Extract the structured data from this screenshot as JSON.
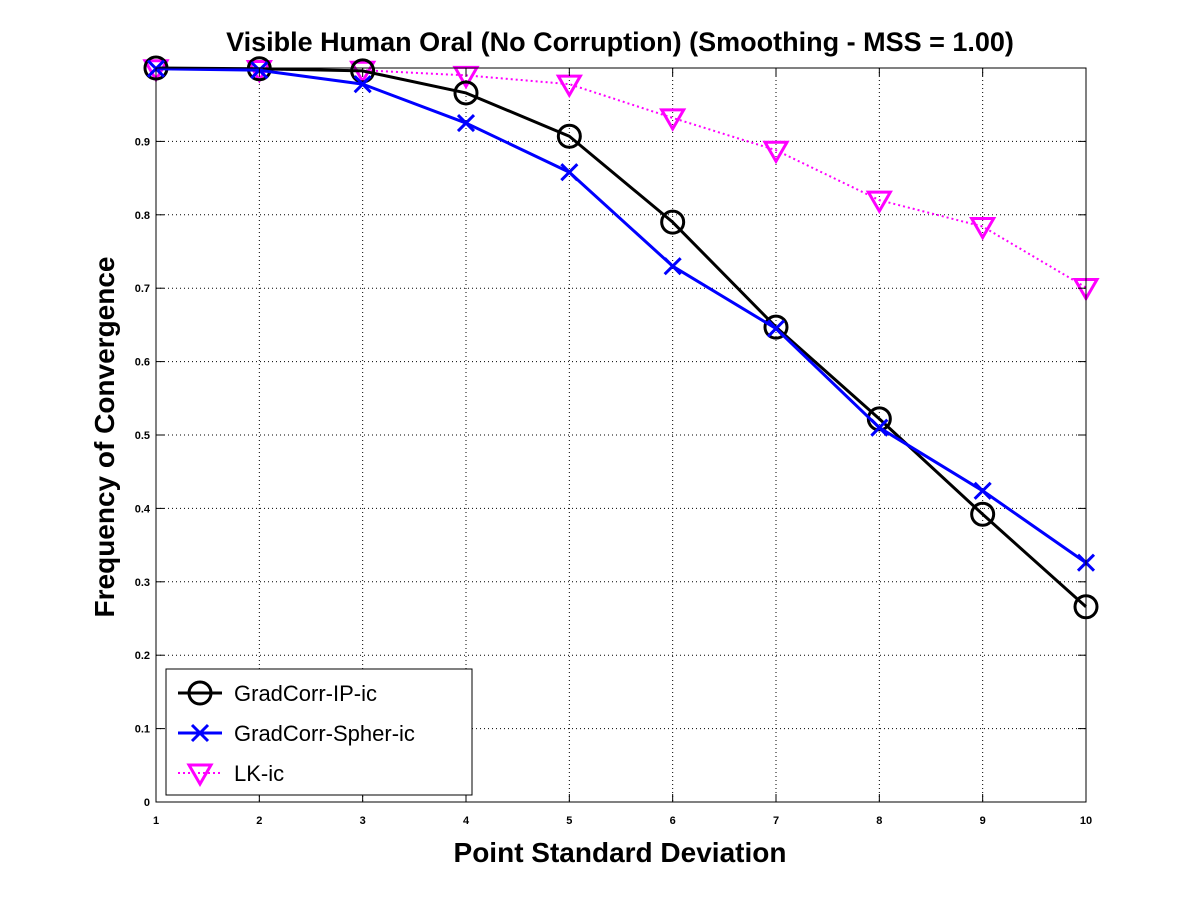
{
  "chart_data": {
    "type": "line",
    "title": "Visible Human Oral (No Corruption) (Smoothing - MSS = 1.00)",
    "xlabel": "Point Standard Deviation",
    "ylabel": "Frequency of Convergence",
    "xlim": [
      1,
      10
    ],
    "ylim": [
      0,
      1
    ],
    "grid": true,
    "legend_position": "bottom-left",
    "x": [
      1,
      2,
      3,
      4,
      5,
      6,
      7,
      8,
      9,
      10
    ],
    "x_ticks": [
      "1",
      "2",
      "3",
      "4",
      "5",
      "6",
      "7",
      "8",
      "9",
      "10"
    ],
    "y_ticks": [
      {
        "value": 0,
        "label": "0"
      },
      {
        "value": 0.1,
        "label": "0.1"
      },
      {
        "value": 0.2,
        "label": "0.2"
      },
      {
        "value": 0.3,
        "label": "0.3"
      },
      {
        "value": 0.4,
        "label": "0.4"
      },
      {
        "value": 0.5,
        "label": "0.5"
      },
      {
        "value": 0.6,
        "label": "0.6"
      },
      {
        "value": 0.7,
        "label": "0.7"
      },
      {
        "value": 0.8,
        "label": "0.8"
      },
      {
        "value": 0.9,
        "label": "0.9"
      }
    ],
    "series": [
      {
        "name": "GradCorr-IP-ic",
        "color": "#000000",
        "marker": "circle",
        "line_style": "solid",
        "values": [
          1.0,
          0.999,
          0.996,
          0.966,
          0.907,
          0.79,
          0.647,
          0.522,
          0.392,
          0.266
        ]
      },
      {
        "name": "GradCorr-Spher-ic",
        "color": "#0000ff",
        "marker": "x",
        "line_style": "solid",
        "values": [
          0.999,
          0.997,
          0.978,
          0.925,
          0.858,
          0.73,
          0.645,
          0.51,
          0.424,
          0.326
        ]
      },
      {
        "name": "LK-ic",
        "color": "#ff00ff",
        "marker": "triangle-down",
        "line_style": "dotted",
        "values": [
          0.999,
          0.998,
          0.997,
          0.99,
          0.978,
          0.932,
          0.888,
          0.82,
          0.784,
          0.701
        ]
      }
    ]
  }
}
